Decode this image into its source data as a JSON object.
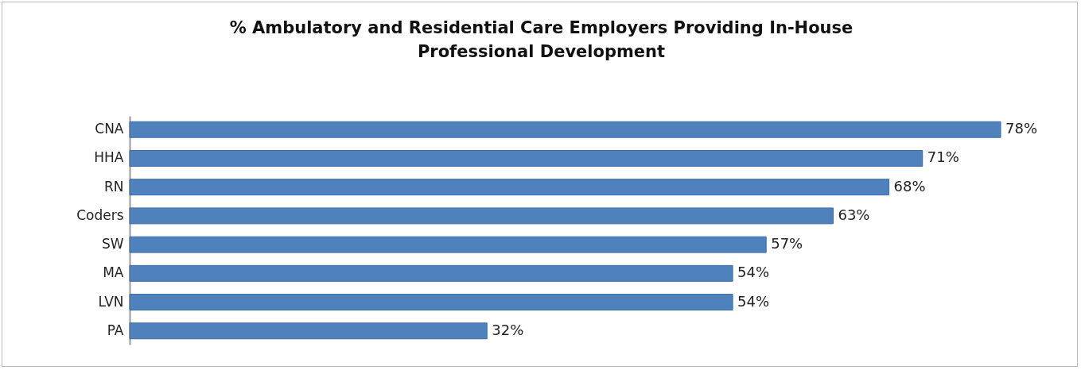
{
  "chart_data": {
    "type": "bar",
    "orientation": "horizontal",
    "title": "% Ambulatory and Residential Care Employers Providing In-House Professional Development",
    "categories": [
      "CNA",
      "HHA",
      "RN",
      "Coders",
      "SW",
      "MA",
      "LVN",
      "PA"
    ],
    "values": [
      78,
      71,
      68,
      63,
      57,
      54,
      54,
      32
    ],
    "value_labels": [
      "78%",
      "71%",
      "68%",
      "63%",
      "57%",
      "54%",
      "54%",
      "32%"
    ],
    "color": "#4f81bd"
  }
}
